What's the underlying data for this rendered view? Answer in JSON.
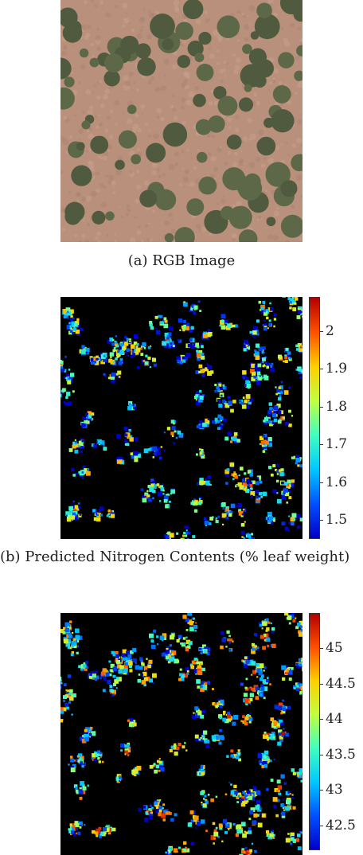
{
  "panels": [
    {
      "id": "a",
      "caption": "(a) RGB Image"
    },
    {
      "id": "b",
      "caption": "(b) Predicted Nitrogen Contents (% leaf weight)",
      "colorbar": {
        "min": 1.45,
        "max": 2.09,
        "ticks": [
          "1.5",
          "1.6",
          "1.7",
          "1.8",
          "1.9",
          "2"
        ]
      }
    },
    {
      "id": "c",
      "caption": "",
      "colorbar": {
        "min": 42.15,
        "max": 45.5,
        "ticks": [
          "42.5",
          "43",
          "43.5",
          "44",
          "44.5",
          "45"
        ]
      }
    }
  ],
  "colors": {
    "soil": "#b9907c",
    "vegetation": "#4f5a3e",
    "background_map": "#000000"
  }
}
